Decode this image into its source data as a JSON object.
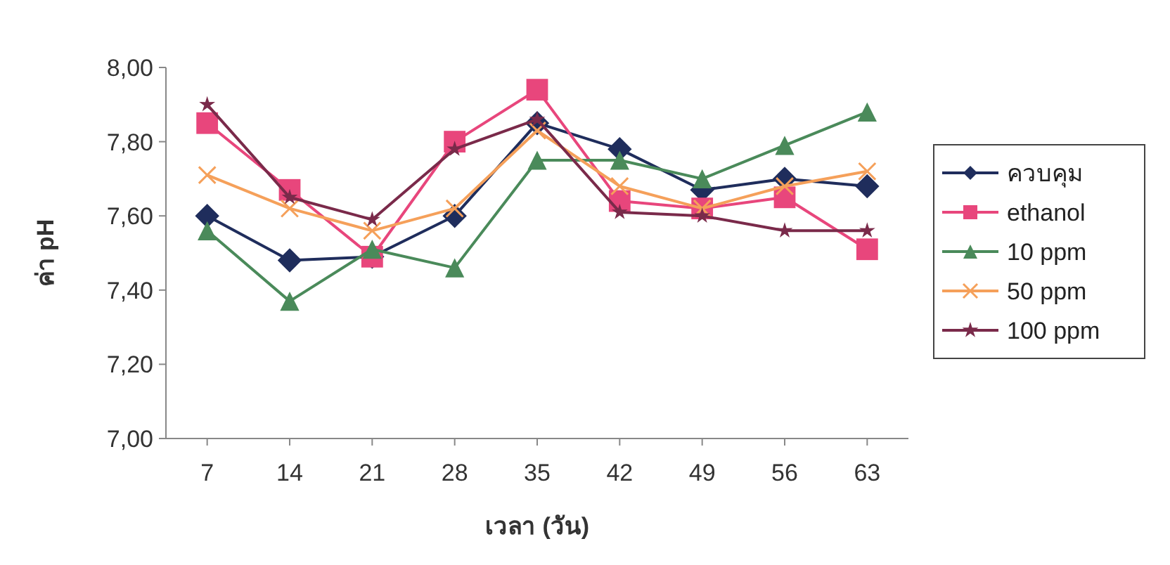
{
  "chart_data": {
    "type": "line",
    "xlabel": "เวลา (วัน)",
    "ylabel": "ค่า pH",
    "categories": [
      "7",
      "14",
      "21",
      "28",
      "35",
      "42",
      "49",
      "56",
      "63"
    ],
    "ylim": [
      7,
      8
    ],
    "yticks": [
      {
        "value": 7,
        "label": "7,00"
      },
      {
        "value": 7.2,
        "label": "7,20"
      },
      {
        "value": 7.4,
        "label": "7,40"
      },
      {
        "value": 7.6,
        "label": "7,60"
      },
      {
        "value": 7.8,
        "label": "7,80"
      },
      {
        "value": 8,
        "label": "8,00"
      }
    ],
    "grid": false,
    "legend": "right",
    "series": [
      {
        "name": "ควบคุม",
        "color": "#1f2d5c",
        "marker": "diamond",
        "values": [
          7.6,
          7.48,
          7.49,
          7.6,
          7.85,
          7.78,
          7.67,
          7.7,
          7.68
        ]
      },
      {
        "name": "ethanol",
        "color": "#e8467c",
        "marker": "square",
        "values": [
          7.85,
          7.67,
          7.49,
          7.8,
          7.94,
          7.64,
          7.62,
          7.65,
          7.51
        ]
      },
      {
        "name": "10 ppm",
        "color": "#4a8a5a",
        "marker": "triangle",
        "values": [
          7.56,
          7.37,
          7.51,
          7.46,
          7.75,
          7.75,
          7.7,
          7.79,
          7.88
        ]
      },
      {
        "name": "50 ppm",
        "color": "#f5a05a",
        "marker": "cross",
        "values": [
          7.71,
          7.62,
          7.56,
          7.62,
          7.83,
          7.68,
          7.62,
          7.68,
          7.72
        ]
      },
      {
        "name": "100 ppm",
        "color": "#7a2a4a",
        "marker": "star",
        "values": [
          7.9,
          7.65,
          7.59,
          7.78,
          7.86,
          7.61,
          7.6,
          7.56,
          7.56
        ]
      }
    ]
  }
}
